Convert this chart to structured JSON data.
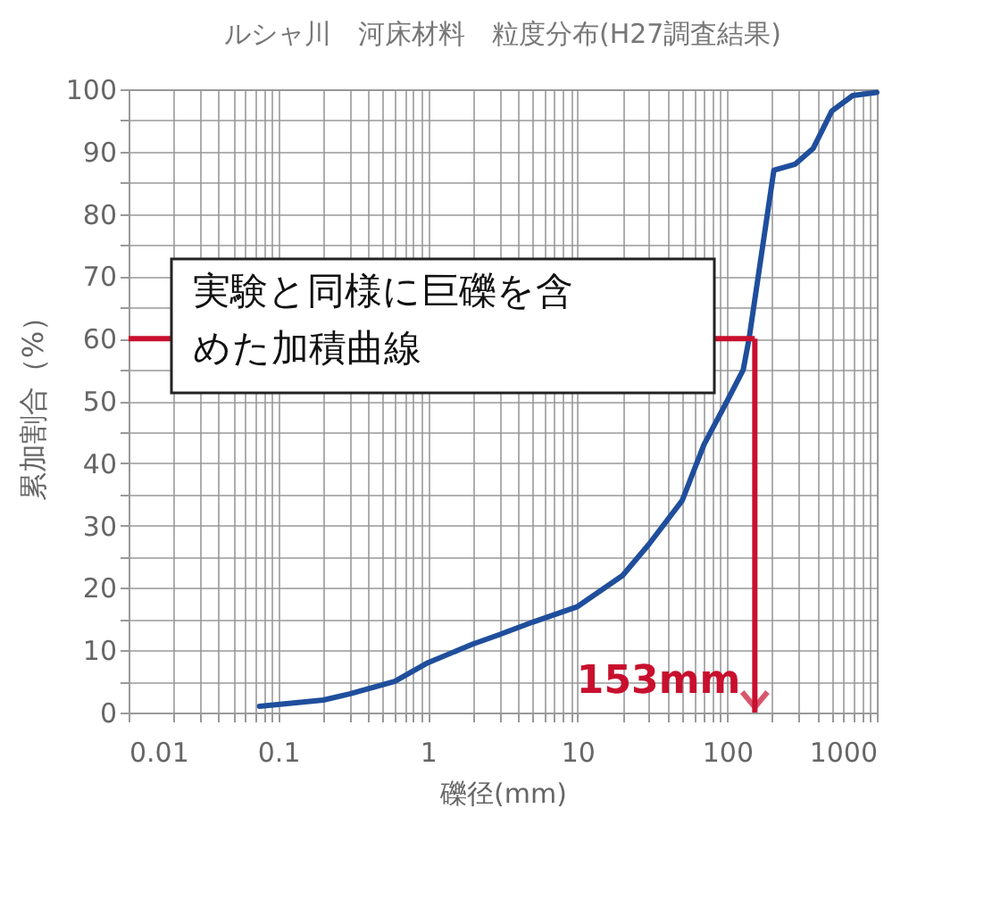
{
  "chart_data": {
    "type": "line",
    "title": "ルシャ川　河床材料　粒度分布(H27調査結果)",
    "xlabel": "礫径(mm)",
    "ylabel": "累加割合（%）",
    "log": "x",
    "grid": true,
    "legend": false,
    "marker": "none",
    "line_style": "solid",
    "x": [
      0.075,
      0.2,
      0.3,
      0.6,
      1,
      2,
      3,
      5,
      10,
      20,
      30,
      50,
      70,
      100,
      128,
      140,
      205,
      285,
      375,
      500,
      690,
      1000
    ],
    "series": [
      {
        "color": "#1f4e9c",
        "values": [
          1,
          2,
          3,
          5,
          8,
          11,
          12.5,
          14.5,
          17,
          22,
          27,
          34,
          43,
          50,
          55,
          60,
          87,
          88,
          90.5,
          96.5,
          99,
          99.5
        ]
      }
    ],
    "xlim": [
      0.01,
      1000
    ],
    "xticks": [
      0.01,
      {
        "value": 0.02,
        "label": null
      },
      {
        "value": 0.03,
        "label": null
      },
      {
        "value": 0.04,
        "label": null
      },
      {
        "value": 0.05,
        "label": null
      },
      {
        "value": 0.06,
        "label": null
      },
      {
        "value": 0.07,
        "label": null
      },
      {
        "value": 0.08,
        "label": null
      },
      {
        "value": 0.09,
        "label": null
      },
      0.1,
      {
        "value": 0.2,
        "label": null
      },
      {
        "value": 0.3,
        "label": null
      },
      {
        "value": 0.4,
        "label": null
      },
      {
        "value": 0.5,
        "label": null
      },
      {
        "value": 0.6,
        "label": null
      },
      {
        "value": 0.7,
        "label": null
      },
      {
        "value": 0.8,
        "label": null
      },
      {
        "value": 0.9,
        "label": null
      },
      1,
      {
        "value": 2,
        "label": null
      },
      {
        "value": 3,
        "label": null
      },
      {
        "value": 4,
        "label": null
      },
      {
        "value": 5,
        "label": null
      },
      {
        "value": 6,
        "label": null
      },
      {
        "value": 7,
        "label": null
      },
      {
        "value": 8,
        "label": null
      },
      {
        "value": 9,
        "label": null
      },
      10,
      {
        "value": 20,
        "label": null
      },
      {
        "value": 30,
        "label": null
      },
      {
        "value": 40,
        "label": null
      },
      {
        "value": 50,
        "label": null
      },
      {
        "value": 60,
        "label": null
      },
      {
        "value": 70,
        "label": null
      },
      {
        "value": 80,
        "label": null
      },
      {
        "value": 90,
        "label": null
      },
      100,
      {
        "value": 200,
        "label": null
      },
      {
        "value": 300,
        "label": null
      },
      {
        "value": 400,
        "label": null
      },
      {
        "value": 500,
        "label": null
      },
      {
        "value": 600,
        "label": null
      },
      {
        "value": 700,
        "label": null
      },
      {
        "value": 800,
        "label": null
      },
      {
        "value": 900,
        "label": null
      },
      1000
    ],
    "ylim": [
      0,
      100
    ],
    "yticks": [
      0,
      {
        "value": 5,
        "label": null
      },
      10,
      {
        "value": 15,
        "label": null
      },
      20,
      {
        "value": 25,
        "label": null
      },
      30,
      {
        "value": 35,
        "label": null
      },
      40,
      {
        "value": 45,
        "label": null
      },
      50,
      {
        "value": 55,
        "label": null
      },
      60,
      {
        "value": 65,
        "label": null
      },
      70,
      {
        "value": 75,
        "label": null
      },
      80,
      {
        "value": 85,
        "label": null
      },
      90,
      {
        "value": 95,
        "label": null
      },
      100
    ],
    "ref_lines": [
      {
        "axis": "y",
        "value": 60,
        "color": "#c8102e"
      },
      {
        "axis": "x",
        "value": 153,
        "label": "153mm",
        "color": "#c8102e"
      }
    ],
    "annotations": [
      "実験と同様に巨礫を含めた加積曲線"
    ]
  }
}
